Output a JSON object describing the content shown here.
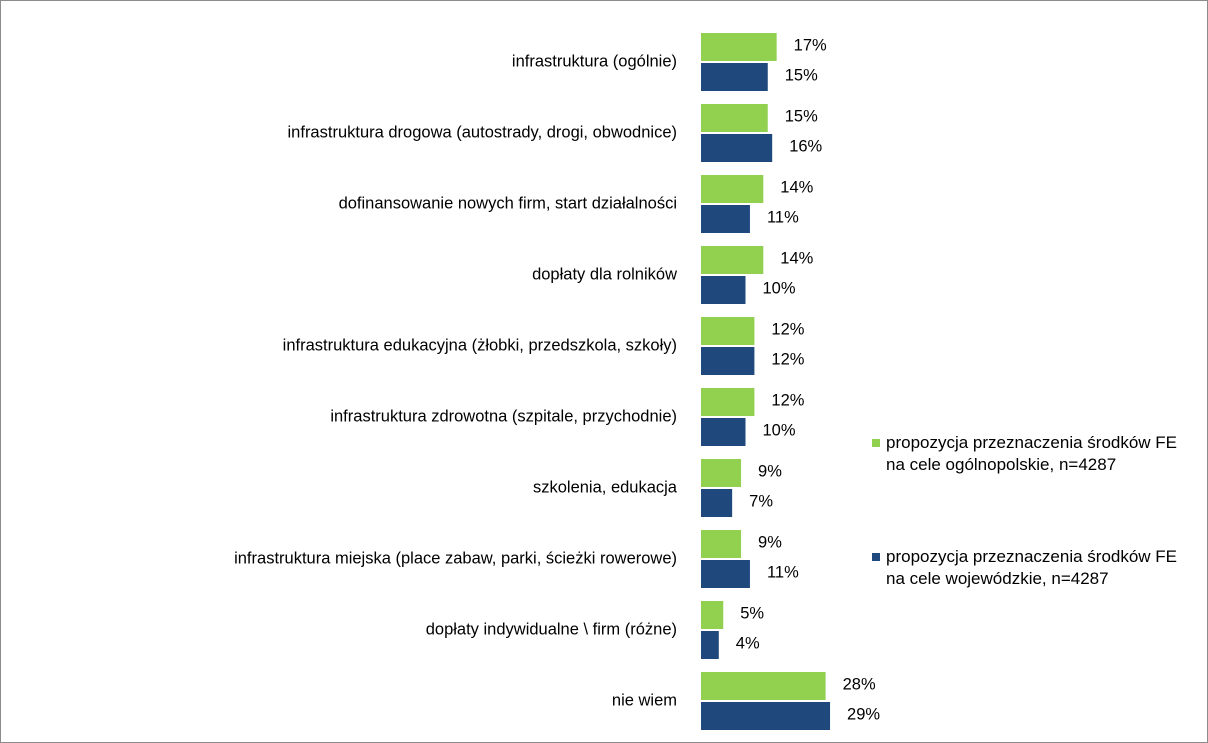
{
  "chart_data": {
    "type": "hbar",
    "categories": [
      "infrastruktura (ogólnie)",
      "infrastruktura drogowa (autostrady, drogi, obwodnice)",
      "dofinansowanie nowych firm, start działalności",
      "dopłaty dla rolników",
      "infrastruktura edukacyjna (żłobki, przedszkola, szkoły)",
      "infrastruktura zdrowotna (szpitale, przychodnie)",
      "szkolenia, edukacja",
      "infrastruktura miejska (place zabaw, parki, ścieżki rowerowe)",
      "dopłaty indywidualne \\ firm (różne)",
      "nie wiem"
    ],
    "series": [
      {
        "name": "propozycja przeznaczenia środków FE na cele ogólnopolskie, n=4287",
        "color": "#92d050",
        "values": [
          17,
          15,
          14,
          14,
          12,
          12,
          9,
          9,
          5,
          28
        ],
        "value_labels": [
          "17%",
          "15%",
          "14%",
          "14%",
          "12%",
          "12%",
          "9%",
          "9%",
          "5%",
          "28%"
        ]
      },
      {
        "name": "propozycja przeznaczenia środków FE na cele wojewódzkie, n=4287",
        "color": "#1f497d",
        "values": [
          15,
          16,
          11,
          10,
          12,
          10,
          7,
          11,
          4,
          29
        ],
        "value_labels": [
          "15%",
          "16%",
          "11%",
          "10%",
          "12%",
          "10%",
          "7%",
          "11%",
          "4%",
          "29%"
        ]
      }
    ],
    "legend": "right"
  }
}
